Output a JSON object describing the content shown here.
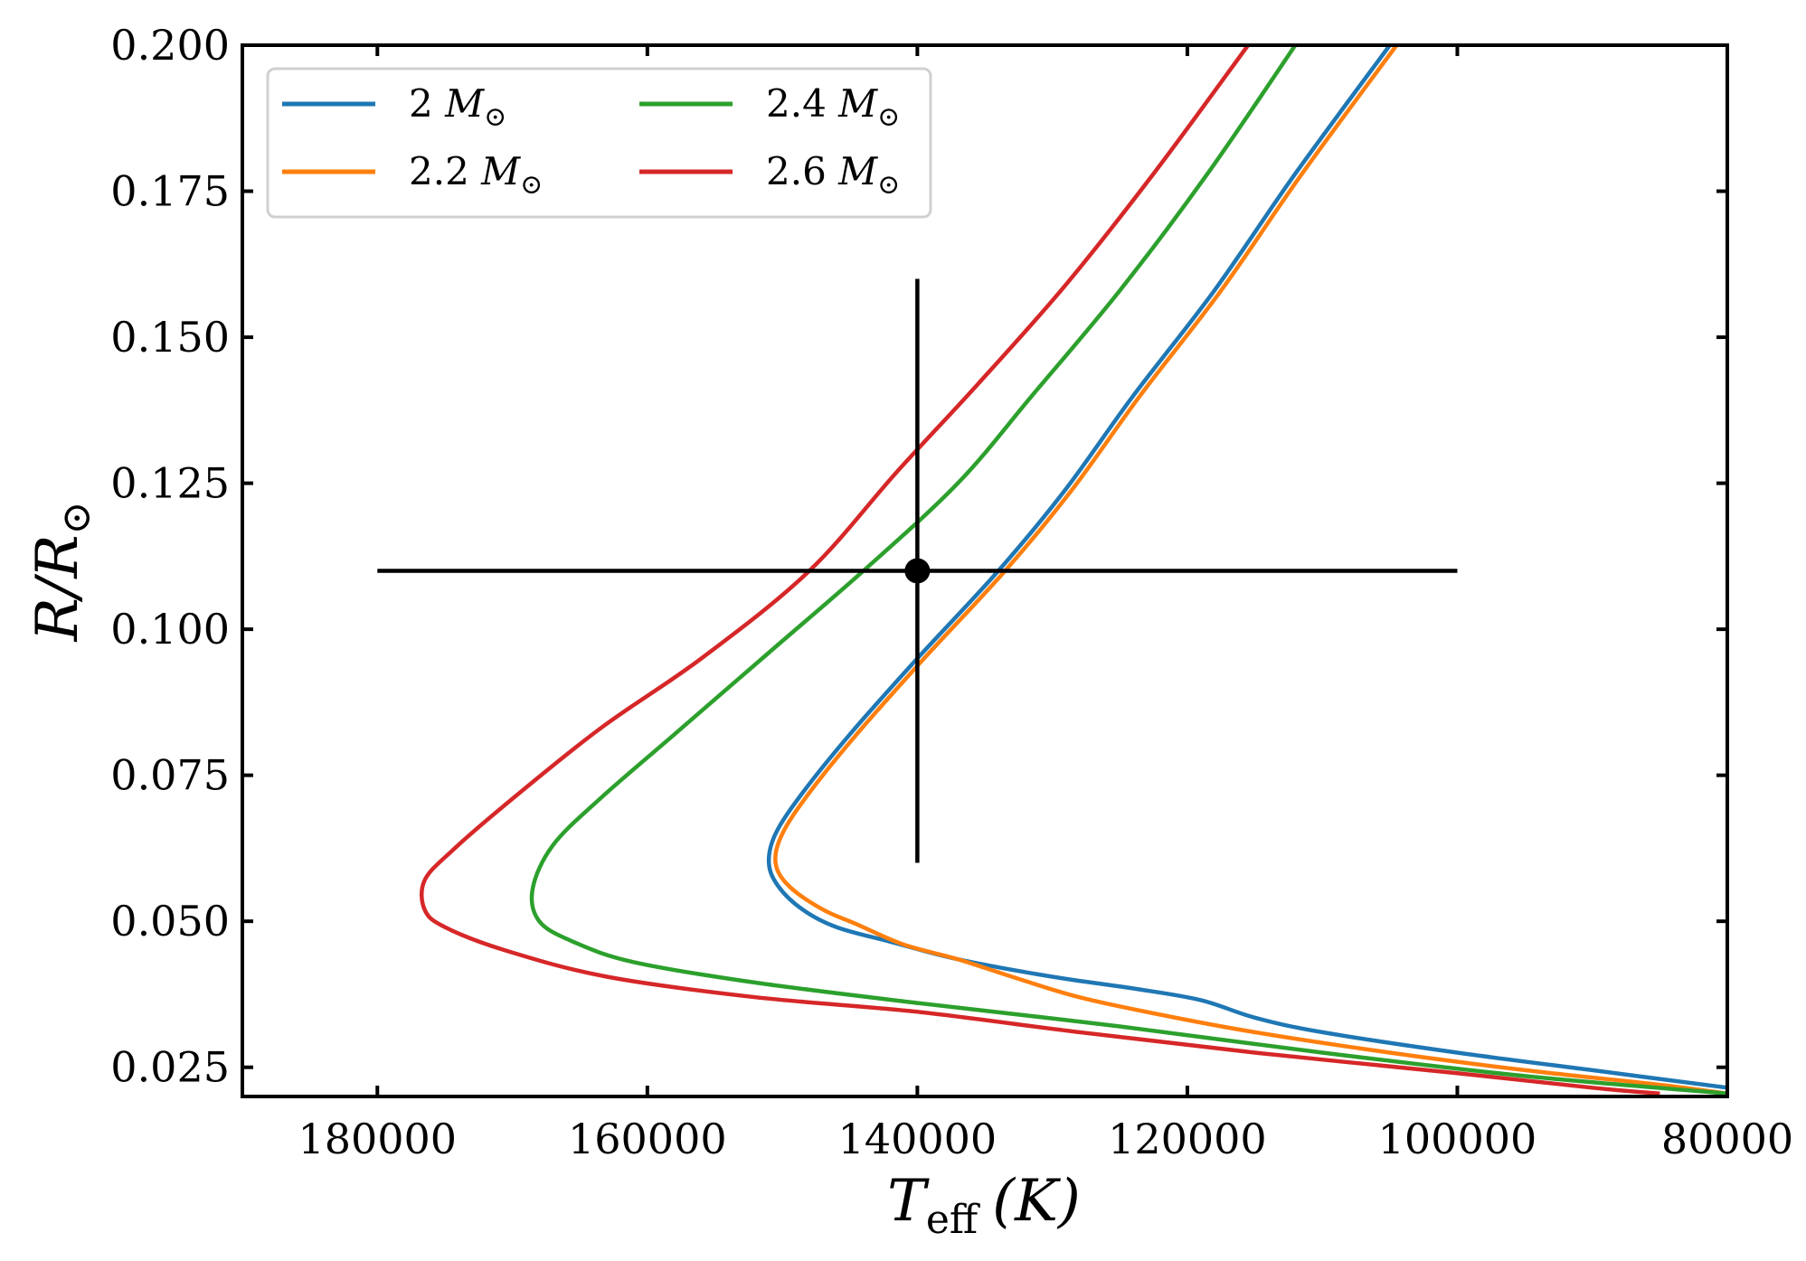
{
  "chart_data": {
    "type": "line",
    "xlabel": {
      "main": "T",
      "sub": "eff",
      "unit": "(K)"
    },
    "ylabel": {
      "main": "R/R",
      "sub": "⊙"
    },
    "xlim": [
      190000,
      80000
    ],
    "ylim": [
      0.02,
      0.2
    ],
    "x_inverted": true,
    "xticks": [
      "180000",
      "160000",
      "140000",
      "120000",
      "100000",
      "80000"
    ],
    "yticks": [
      "0.025",
      "0.050",
      "0.075",
      "0.100",
      "0.125",
      "0.150",
      "0.175",
      "0.200"
    ],
    "grid": false,
    "legend_position": "top-left",
    "series": [
      {
        "name": "2 M⊙",
        "mass": "2",
        "color": "#1f77b4",
        "points": [
          [
            105000,
            0.2
          ],
          [
            112000,
            0.178
          ],
          [
            118000,
            0.158
          ],
          [
            124000,
            0.14
          ],
          [
            129000,
            0.124
          ],
          [
            134000,
            0.11
          ],
          [
            140000,
            0.095
          ],
          [
            145000,
            0.082
          ],
          [
            148500,
            0.072
          ],
          [
            150500,
            0.065
          ],
          [
            151000,
            0.06
          ],
          [
            150300,
            0.056
          ],
          [
            148500,
            0.052
          ],
          [
            146000,
            0.049
          ],
          [
            142000,
            0.0465
          ],
          [
            137000,
            0.0435
          ],
          [
            130000,
            0.0405
          ],
          [
            124000,
            0.0385
          ],
          [
            119000,
            0.0365
          ],
          [
            115000,
            0.0335
          ],
          [
            110000,
            0.031
          ],
          [
            100000,
            0.0275
          ],
          [
            90000,
            0.0245
          ],
          [
            80000,
            0.0215
          ]
        ]
      },
      {
        "name": "2.2 M⊙",
        "mass": "2.2",
        "color": "#ff7f0e",
        "points": [
          [
            104500,
            0.2
          ],
          [
            111500,
            0.178
          ],
          [
            117500,
            0.158
          ],
          [
            123500,
            0.14
          ],
          [
            128500,
            0.124
          ],
          [
            133500,
            0.11
          ],
          [
            139500,
            0.095
          ],
          [
            144500,
            0.082
          ],
          [
            148000,
            0.072
          ],
          [
            150000,
            0.065
          ],
          [
            150500,
            0.06
          ],
          [
            149500,
            0.056
          ],
          [
            147000,
            0.052
          ],
          [
            144500,
            0.0495
          ],
          [
            141000,
            0.046
          ],
          [
            137000,
            0.0435
          ],
          [
            133000,
            0.0405
          ],
          [
            128000,
            0.037
          ],
          [
            122000,
            0.034
          ],
          [
            115000,
            0.031
          ],
          [
            105000,
            0.0275
          ],
          [
            95000,
            0.0245
          ],
          [
            85000,
            0.022
          ],
          [
            80000,
            0.0205
          ]
        ]
      },
      {
        "name": "2.4 M⊙",
        "mass": "2.4",
        "color": "#2ca02c",
        "points": [
          [
            112000,
            0.2
          ],
          [
            118500,
            0.178
          ],
          [
            125000,
            0.158
          ],
          [
            131500,
            0.14
          ],
          [
            137000,
            0.125
          ],
          [
            144000,
            0.11
          ],
          [
            151000,
            0.096
          ],
          [
            158000,
            0.082
          ],
          [
            163500,
            0.071
          ],
          [
            167000,
            0.063
          ],
          [
            168500,
            0.0555
          ],
          [
            168000,
            0.05
          ],
          [
            165500,
            0.0465
          ],
          [
            161000,
            0.043
          ],
          [
            152000,
            0.0395
          ],
          [
            140000,
            0.036
          ],
          [
            125000,
            0.032
          ],
          [
            110000,
            0.0275
          ],
          [
            95000,
            0.0235
          ],
          [
            80000,
            0.0205
          ]
        ]
      },
      {
        "name": "2.6 M⊙",
        "mass": "2.6",
        "color": "#d62728",
        "points": [
          [
            115500,
            0.2
          ],
          [
            122500,
            0.178
          ],
          [
            129000,
            0.159
          ],
          [
            135500,
            0.142
          ],
          [
            141500,
            0.127
          ],
          [
            148000,
            0.11
          ],
          [
            156000,
            0.095
          ],
          [
            163500,
            0.083
          ],
          [
            170500,
            0.07
          ],
          [
            174500,
            0.062
          ],
          [
            176500,
            0.057
          ],
          [
            176500,
            0.052
          ],
          [
            175000,
            0.049
          ],
          [
            170500,
            0.045
          ],
          [
            163000,
            0.0405
          ],
          [
            152000,
            0.037
          ],
          [
            140000,
            0.0345
          ],
          [
            128000,
            0.031
          ],
          [
            115000,
            0.0275
          ],
          [
            100000,
            0.024
          ],
          [
            90000,
            0.0215
          ],
          [
            85000,
            0.0205
          ]
        ]
      }
    ],
    "errorbar": {
      "x": 140000,
      "y": 0.11,
      "xerr_low": 100000,
      "xerr_high": 180000,
      "yerr_low": 0.06,
      "yerr_high": 0.16,
      "color": "#000000"
    }
  }
}
